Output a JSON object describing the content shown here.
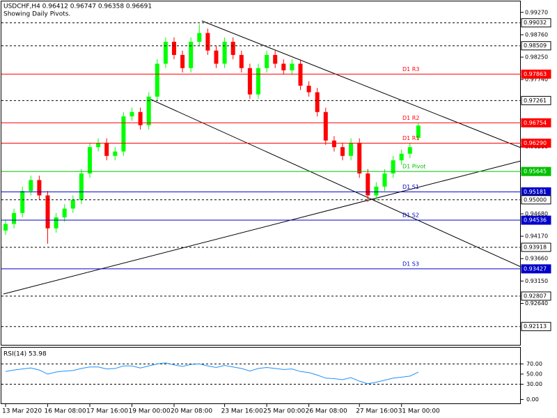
{
  "header": {
    "symbol_line": "USDCHF,H4  0.96412 0.96747 0.96358 0.96691",
    "note": "Showing Daily Pivots."
  },
  "chart_data": [
    {
      "type": "candlestick",
      "categories": [
        "13 Mar 2020",
        null,
        null,
        null,
        null,
        "16 Mar 08:00",
        null,
        null,
        null,
        null,
        "17 Mar 16:00",
        null,
        null,
        null,
        null,
        "19 Mar 00:00",
        null,
        null,
        null,
        null,
        "20 Mar 08:00",
        null,
        null,
        null,
        null,
        null,
        "23 Mar 16:00",
        null,
        null,
        null,
        null,
        "25 Mar 00:00",
        null,
        null,
        null,
        null,
        "26 Mar 08:00",
        null,
        null,
        null,
        null,
        null,
        "27 Mar 16:00",
        null,
        null,
        null,
        null,
        "31 Mar 00:00",
        null,
        null
      ],
      "open": [
        0.943,
        0.9445,
        0.947,
        0.952,
        0.9545,
        0.951,
        0.9435,
        0.946,
        0.948,
        0.95,
        0.956,
        0.962,
        0.963,
        0.96,
        0.961,
        0.969,
        0.97,
        0.967,
        0.9735,
        0.981,
        0.986,
        0.983,
        0.98,
        0.986,
        0.988,
        0.984,
        0.981,
        0.986,
        0.983,
        0.98,
        0.974,
        0.98,
        0.983,
        0.981,
        0.9795,
        0.981,
        0.976,
        0.9745,
        0.97,
        0.9635,
        0.962,
        0.96,
        0.963,
        0.956,
        0.951,
        0.953,
        0.956,
        0.959,
        0.9605,
        0.96412
      ],
      "high": [
        0.9455,
        0.948,
        0.953,
        0.9555,
        0.9555,
        0.952,
        0.947,
        0.949,
        0.951,
        0.957,
        0.963,
        0.964,
        0.964,
        0.962,
        0.97,
        0.971,
        0.971,
        0.9745,
        0.982,
        0.987,
        0.987,
        0.984,
        0.987,
        0.99,
        0.989,
        0.985,
        0.987,
        0.987,
        0.984,
        0.981,
        0.981,
        0.984,
        0.984,
        0.982,
        0.982,
        0.982,
        0.977,
        0.9755,
        0.971,
        0.9645,
        0.963,
        0.964,
        0.964,
        0.957,
        0.954,
        0.957,
        0.96,
        0.9615,
        0.963,
        0.96747
      ],
      "low": [
        0.942,
        0.9435,
        0.946,
        0.951,
        0.95,
        0.94,
        0.9425,
        0.945,
        0.947,
        0.949,
        0.955,
        0.961,
        0.959,
        0.959,
        0.96,
        0.968,
        0.966,
        0.966,
        0.9725,
        0.98,
        0.982,
        0.979,
        0.979,
        0.985,
        0.983,
        0.98,
        0.98,
        0.982,
        0.979,
        0.973,
        0.973,
        0.979,
        0.98,
        0.9785,
        0.9785,
        0.975,
        0.9735,
        0.969,
        0.9625,
        0.961,
        0.959,
        0.959,
        0.955,
        0.9495,
        0.95,
        0.952,
        0.955,
        0.958,
        0.9595,
        0.96358
      ],
      "close": [
        0.9445,
        0.947,
        0.952,
        0.9545,
        0.951,
        0.9435,
        0.946,
        0.948,
        0.95,
        0.956,
        0.962,
        0.963,
        0.96,
        0.961,
        0.969,
        0.97,
        0.967,
        0.9735,
        0.981,
        0.986,
        0.983,
        0.98,
        0.986,
        0.988,
        0.984,
        0.981,
        0.986,
        0.983,
        0.98,
        0.974,
        0.98,
        0.983,
        0.981,
        0.9795,
        0.981,
        0.976,
        0.9745,
        0.97,
        0.9635,
        0.962,
        0.96,
        0.963,
        0.956,
        0.951,
        0.953,
        0.956,
        0.959,
        0.9605,
        0.962,
        0.96691
      ],
      "up_color": "#00ff00",
      "down_color": "#ff0000",
      "ylim": [
        0.9168,
        0.9952
      ],
      "yticks": [
        {
          "value": 0.9927,
          "label": "0.99270"
        },
        {
          "value": 0.9876,
          "label": "0.98760"
        },
        {
          "value": 0.9825,
          "label": "0.98250"
        },
        {
          "value": 0.9774,
          "label": "0.97740"
        },
        {
          "value": 0.9621,
          "label": "0.96210"
        },
        {
          "value": 0.9468,
          "label": "0.94680"
        },
        {
          "value": 0.9417,
          "label": "0.94170"
        },
        {
          "value": 0.9366,
          "label": "0.93660"
        },
        {
          "value": 0.9315,
          "label": "0.93150"
        },
        {
          "value": 0.9264,
          "label": "0.92640"
        }
      ],
      "levels": [
        {
          "value": 0.99032,
          "label": "0.99032",
          "color": "#000000",
          "style": "dashed"
        },
        {
          "value": 0.98509,
          "label": "0.98509",
          "color": "#000000",
          "style": "dashed"
        },
        {
          "value": 0.97863,
          "label": "0.97863",
          "name": "D1 R3",
          "color": "#ff0000",
          "style": "solid"
        },
        {
          "value": 0.97261,
          "label": "0.97261",
          "color": "#000000",
          "style": "dashed"
        },
        {
          "value": 0.96754,
          "label": "0.96754",
          "name": "D1 R2",
          "color": "#ff0000",
          "style": "solid"
        },
        {
          "value": 0.9629,
          "label": "0.96290",
          "name": "D1 R1",
          "color": "#ff0000",
          "style": "solid"
        },
        {
          "value": 0.95645,
          "label": "0.95645",
          "name": "D1 Pivot",
          "color": "#00c000",
          "style": "solid"
        },
        {
          "value": 0.95181,
          "label": "0.95181",
          "name": "D1 S1",
          "color": "#0000c8",
          "style": "solid"
        },
        {
          "value": 0.95,
          "label": "0.95000",
          "color": "#000000",
          "style": "dashed"
        },
        {
          "value": 0.94536,
          "label": "0.94536",
          "name": "D1 S2",
          "color": "#0000c8",
          "style": "solid"
        },
        {
          "value": 0.93918,
          "label": "0.93918",
          "color": "#000000",
          "style": "dashed"
        },
        {
          "value": 0.93427,
          "label": "0.93427",
          "name": "D1 S3",
          "color": "#0000c8",
          "style": "solid"
        },
        {
          "value": 0.92807,
          "label": "0.92807",
          "color": "#000000",
          "style": "dashed"
        },
        {
          "value": 0.92113,
          "label": "0.92113",
          "color": "#000000",
          "style": "dashed"
        }
      ]
    },
    {
      "type": "line",
      "title": "RSI(14) 53.98",
      "color": "#1e90ff",
      "values": [
        55,
        58,
        60,
        62,
        58,
        50,
        54,
        56,
        57,
        61,
        64,
        64,
        60,
        61,
        66,
        66,
        62,
        66,
        70,
        72,
        68,
        65,
        69,
        70,
        66,
        63,
        67,
        64,
        61,
        56,
        61,
        63,
        61,
        59,
        60,
        55,
        53,
        48,
        42,
        41,
        39,
        43,
        36,
        31,
        34,
        38,
        42,
        44,
        46,
        53.98
      ],
      "ylim": [
        -9,
        102
      ],
      "yticks": [
        {
          "value": 70,
          "label": "70.00"
        },
        {
          "value": 50,
          "label": "50.00"
        },
        {
          "value": 30,
          "label": "30.00"
        },
        {
          "value": 0,
          "label": "0.00"
        }
      ],
      "levels": [
        70,
        30
      ]
    }
  ]
}
